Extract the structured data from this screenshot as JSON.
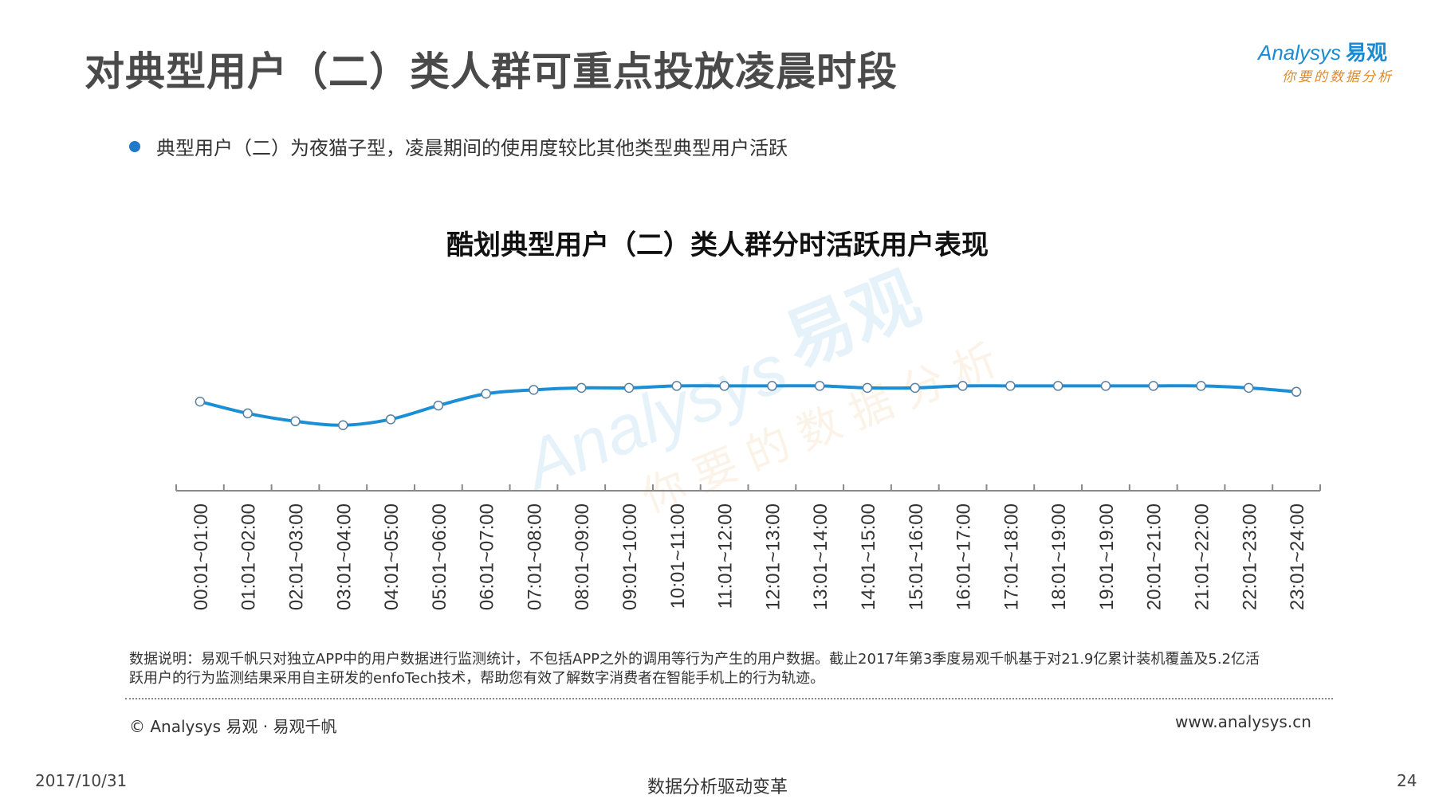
{
  "header": {
    "title": "对典型用户（二）类人群可重点投放凌晨时段",
    "logo": {
      "brand": "Analysys",
      "brand_cn": "易观",
      "slogan": "你要的数据分析"
    }
  },
  "bullet": "典型用户（二）为夜猫子型，凌晨期间的使用度较比其他类型典型用户活跃",
  "colors": {
    "accent": "#1f78c8",
    "line": "#1a8fd6",
    "title_gray": "#4a4a4a"
  },
  "watermark": {
    "brand": "Analysys",
    "brand_cn": "易观",
    "slogan": "你要的数据分析"
  },
  "chart_data": {
    "type": "line",
    "title": "酷划典型用户（二）类人群分时活跃用户表现",
    "categories": [
      "00:01~01:00",
      "01:01~02:00",
      "02:01~03:00",
      "03:01~04:00",
      "04:01~05:00",
      "05:01~06:00",
      "06:01~07:00",
      "07:01~08:00",
      "08:01~09:00",
      "09:01~10:00",
      "10:01~11:00",
      "11:01~12:00",
      "12:01~13:00",
      "13:01~14:00",
      "14:01~15:00",
      "15:01~16:00",
      "16:01~17:00",
      "17:01~18:00",
      "18:01~19:00",
      "19:01~19:00",
      "20:01~21:00",
      "21:01~22:00",
      "22:01~23:00",
      "23:01~24:00"
    ],
    "series": [
      {
        "values": [
          0.87,
          0.84,
          0.82,
          0.81,
          0.825,
          0.86,
          0.89,
          0.9,
          0.905,
          0.905,
          0.91,
          0.91,
          0.91,
          0.91,
          0.905,
          0.905,
          0.91,
          0.91,
          0.91,
          0.91,
          0.91,
          0.91,
          0.905,
          0.895
        ]
      }
    ],
    "yaxis_visible": false,
    "grid": false,
    "legend": "none"
  },
  "footer": {
    "notes": "数据说明：易观千帆只对独立APP中的用户数据进行监测统计，不包括APP之外的调用等行为产生的用户数据。截止2017年第3季度易观千帆基于对21.9亿累计装机覆盖及5.2亿活跃用户的行为监测结果采用自主研发的enfoTech技术，帮助您有效了解数字消费者在智能手机上的行为轨迹。",
    "copyright": "© Analysys 易观 · 易观千帆",
    "website": "www.analysys.cn",
    "date": "2017/10/31",
    "center": "数据分析驱动变革",
    "page": "24"
  }
}
